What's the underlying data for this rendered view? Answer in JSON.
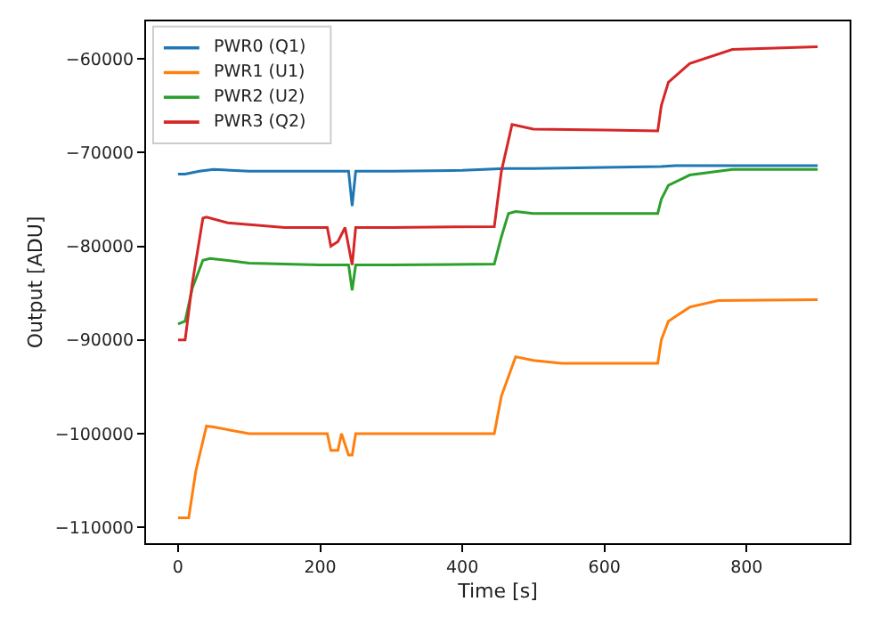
{
  "chart_data": {
    "type": "line",
    "xlabel": "Time [s]",
    "ylabel": "Output [ADU]",
    "xlim": [
      -45,
      945
    ],
    "xticks": [
      0,
      200,
      400,
      600,
      800
    ],
    "ylim": [
      -111700,
      -56000
    ],
    "yticks": [
      {
        "value": -110000,
        "label": "−110000"
      },
      {
        "value": -100000,
        "label": "−100000"
      },
      {
        "value": -90000,
        "label": "−90000"
      },
      {
        "value": -80000,
        "label": "−80000"
      },
      {
        "value": -70000,
        "label": "−70000"
      },
      {
        "value": -60000,
        "label": "−60000"
      }
    ],
    "legend": "top left",
    "marker": "none",
    "line_style": "solid",
    "series": [
      {
        "name": "PWR0 (Q1)",
        "color": "#1f77b4",
        "x": [
          0,
          10,
          30,
          50,
          100,
          200,
          240,
          245,
          250,
          300,
          400,
          460,
          500,
          600,
          680,
          700,
          800,
          900
        ],
        "values": [
          -72300,
          -72300,
          -72000,
          -71800,
          -72000,
          -72000,
          -72000,
          -75700,
          -72000,
          -72000,
          -71900,
          -71700,
          -71700,
          -71600,
          -71500,
          -71400,
          -71400,
          -71400
        ]
      },
      {
        "name": "PWR1 (U1)",
        "color": "#ff7f0e",
        "x": [
          0,
          15,
          25,
          40,
          50,
          100,
          210,
          215,
          225,
          230,
          240,
          245,
          250,
          300,
          445,
          455,
          475,
          500,
          540,
          675,
          680,
          690,
          720,
          760,
          900
        ],
        "values": [
          -109000,
          -109000,
          -104000,
          -99200,
          -99300,
          -100000,
          -100000,
          -101800,
          -101800,
          -100000,
          -102300,
          -102300,
          -100000,
          -100000,
          -100000,
          -96000,
          -91800,
          -92200,
          -92500,
          -92500,
          -90000,
          -88000,
          -86500,
          -85800,
          -85700
        ]
      },
      {
        "name": "PWR2 (U2)",
        "color": "#2ca02c",
        "x": [
          0,
          10,
          20,
          35,
          45,
          100,
          200,
          240,
          245,
          250,
          300,
          445,
          455,
          465,
          475,
          500,
          600,
          675,
          680,
          690,
          720,
          780,
          900
        ],
        "values": [
          -88300,
          -88000,
          -84500,
          -81500,
          -81300,
          -81800,
          -82000,
          -82000,
          -84700,
          -82000,
          -82000,
          -81900,
          -79000,
          -76500,
          -76300,
          -76500,
          -76500,
          -76500,
          -75000,
          -73500,
          -72400,
          -71800,
          -71800
        ]
      },
      {
        "name": "PWR3 (Q2)",
        "color": "#d62728",
        "x": [
          0,
          10,
          20,
          35,
          40,
          70,
          150,
          210,
          215,
          225,
          235,
          245,
          250,
          300,
          445,
          455,
          470,
          500,
          600,
          675,
          680,
          690,
          720,
          780,
          900
        ],
        "values": [
          -90000,
          -90000,
          -84000,
          -77000,
          -76900,
          -77500,
          -78000,
          -78000,
          -80000,
          -79500,
          -78000,
          -82000,
          -78000,
          -78000,
          -77900,
          -72000,
          -67000,
          -67500,
          -67600,
          -67700,
          -65000,
          -62500,
          -60500,
          -59000,
          -58700
        ]
      }
    ]
  }
}
